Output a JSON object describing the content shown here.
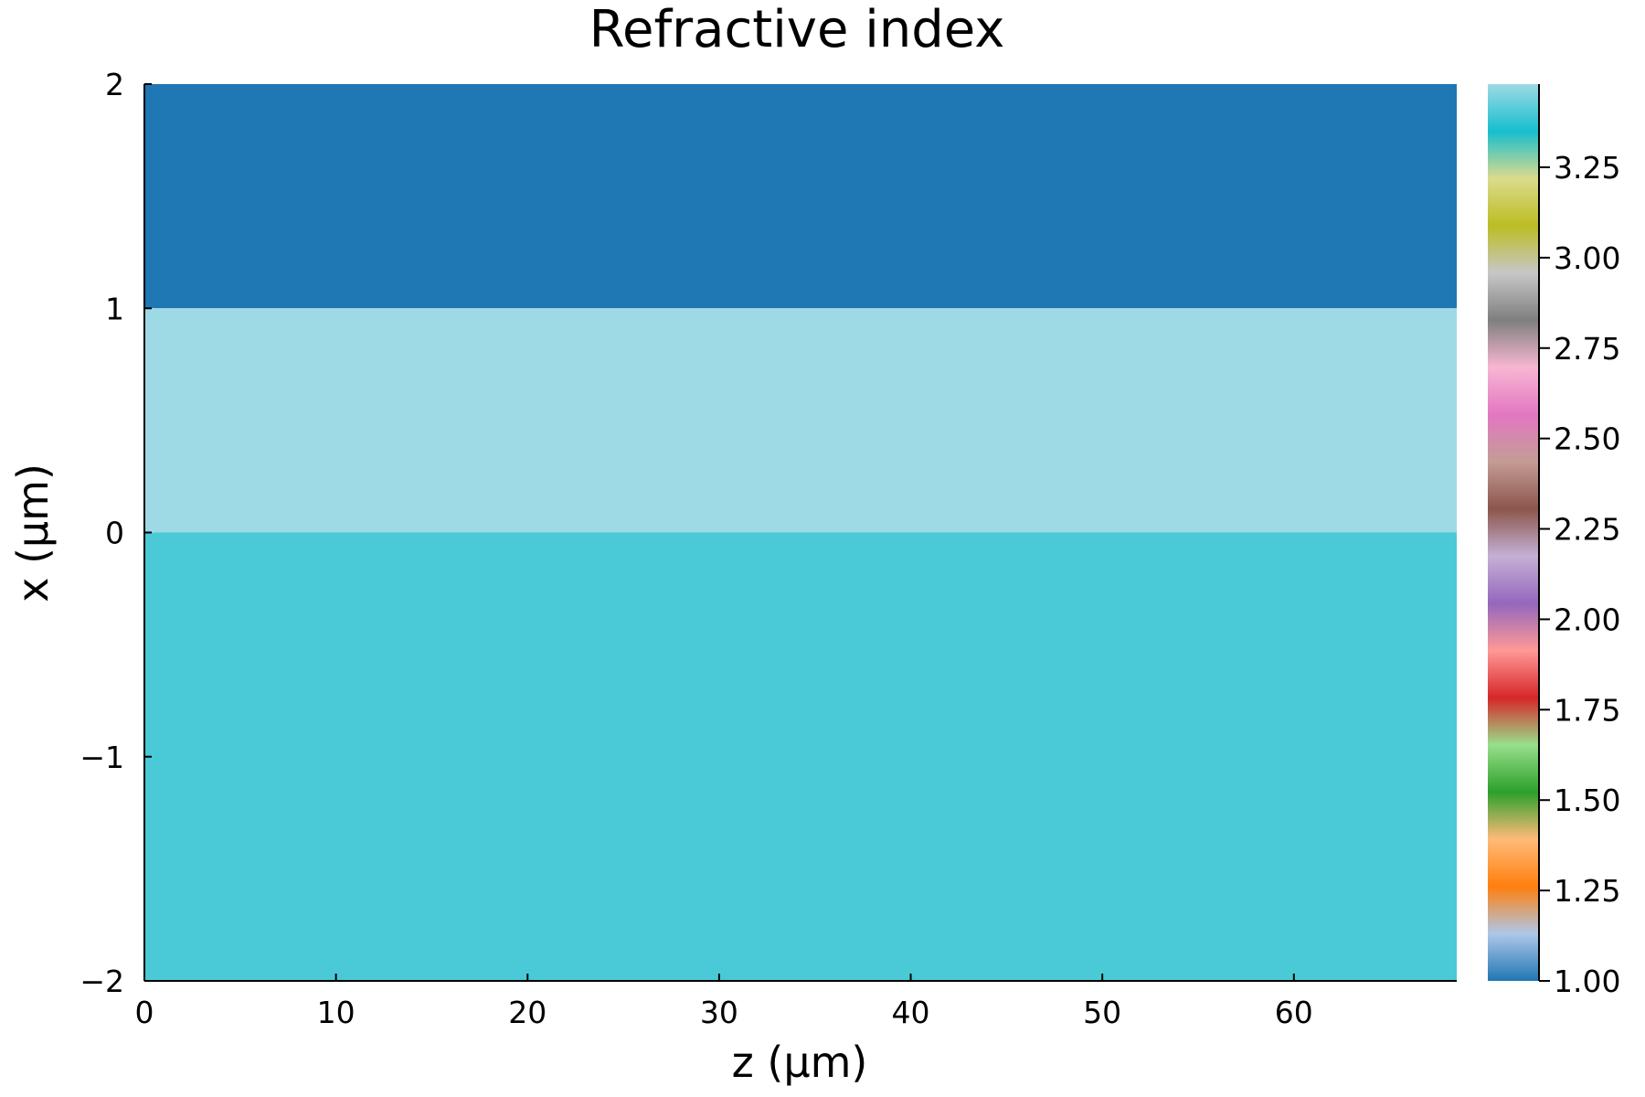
{
  "chart_data": {
    "type": "heatmap",
    "title": "Refractive index",
    "xlabel": "z (μm)",
    "ylabel": "x (μm)",
    "xlim": [
      0,
      68.5
    ],
    "ylim": [
      -2,
      2
    ],
    "x_ticks": [
      0,
      10,
      20,
      30,
      40,
      50,
      60
    ],
    "x_tick_labels": [
      "0",
      "10",
      "20",
      "30",
      "40",
      "50",
      "60"
    ],
    "y_ticks": [
      -2,
      -1,
      0,
      1,
      2
    ],
    "y_tick_labels": [
      "−2",
      "−1",
      "0",
      "1",
      "2"
    ],
    "grid": false,
    "regions": [
      {
        "x_range": [
          0,
          68.5
        ],
        "y_range": [
          1,
          2
        ],
        "value": 1.0,
        "color": "#1f77b4"
      },
      {
        "x_range": [
          0,
          68.5
        ],
        "y_range": [
          0,
          1
        ],
        "value": 3.48,
        "color": "#9edae5"
      },
      {
        "x_range": [
          0,
          68.5
        ],
        "y_range": [
          -2,
          0
        ],
        "value": 3.3,
        "color": "#4ac9d6"
      }
    ],
    "colorbar": {
      "range": [
        1.0,
        3.48
      ],
      "ticks": [
        1.0,
        1.25,
        1.5,
        1.75,
        2.0,
        2.25,
        2.5,
        2.75,
        3.0,
        3.25
      ],
      "tick_labels": [
        "1.00",
        "1.25",
        "1.50",
        "1.75",
        "2.00",
        "2.25",
        "2.50",
        "2.75",
        "3.00",
        "3.25"
      ],
      "colors": [
        "#1f77b4",
        "#aec7e8",
        "#ff7f0e",
        "#ffbb78",
        "#2ca02c",
        "#98df8a",
        "#d62728",
        "#ff9896",
        "#9467bd",
        "#c5b0d5",
        "#8c564b",
        "#c49c94",
        "#e377c2",
        "#f7b6d2",
        "#7f7f7f",
        "#c7c7c7",
        "#bcbd22",
        "#dbdb8d",
        "#17becf",
        "#9edae5"
      ]
    }
  }
}
